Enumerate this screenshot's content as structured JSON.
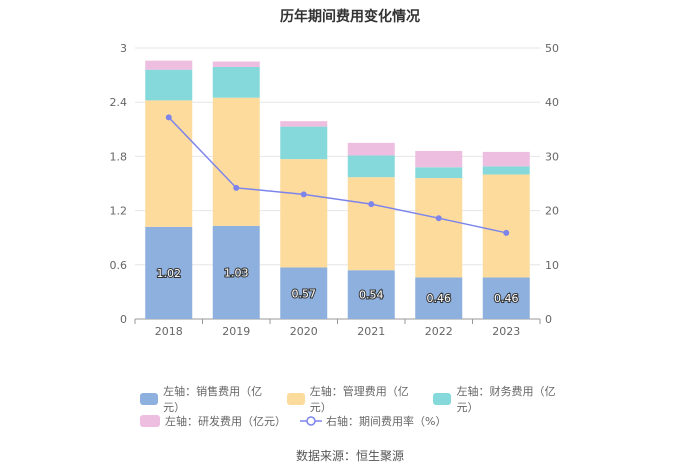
{
  "chart_data": {
    "type": "bar",
    "title": "历年期间费用变化情况",
    "categories": [
      "2018",
      "2019",
      "2020",
      "2021",
      "2022",
      "2023"
    ],
    "series": [
      {
        "name": "左轴：销售费用（亿元）",
        "axis": "left",
        "color": "#8eb0de",
        "values": [
          1.02,
          1.03,
          0.57,
          0.54,
          0.46,
          0.46
        ],
        "labels": [
          "1.02",
          "1.03",
          "0.57",
          "0.54",
          "0.46",
          "0.46"
        ]
      },
      {
        "name": "左轴：管理费用（亿元）",
        "axis": "left",
        "color": "#fcdb9c",
        "values": [
          1.4,
          1.42,
          1.2,
          1.03,
          1.1,
          1.14
        ]
      },
      {
        "name": "左轴：财务费用（亿元）",
        "axis": "left",
        "color": "#86d9da",
        "values": [
          0.34,
          0.34,
          0.36,
          0.24,
          0.12,
          0.09
        ]
      },
      {
        "name": "左轴：研发费用（亿元）",
        "axis": "left",
        "color": "#eebee0",
        "values": [
          0.1,
          0.06,
          0.06,
          0.14,
          0.18,
          0.16
        ]
      },
      {
        "name": "右轴：期间费用率（%）",
        "axis": "right",
        "type": "line",
        "color": "#7c84ec",
        "values": [
          37.2,
          24.2,
          23.0,
          21.2,
          18.6,
          15.9
        ]
      }
    ],
    "y_left": {
      "min": 0,
      "max": 3,
      "ticks": [
        "0",
        "0.6",
        "1.2",
        "1.8",
        "2.4",
        "3"
      ]
    },
    "y_right": {
      "min": 0,
      "max": 50,
      "ticks": [
        "0",
        "10",
        "20",
        "30",
        "40",
        "50"
      ]
    },
    "grid": true,
    "legend_position": "bottom"
  },
  "source": "数据来源：恒生聚源"
}
